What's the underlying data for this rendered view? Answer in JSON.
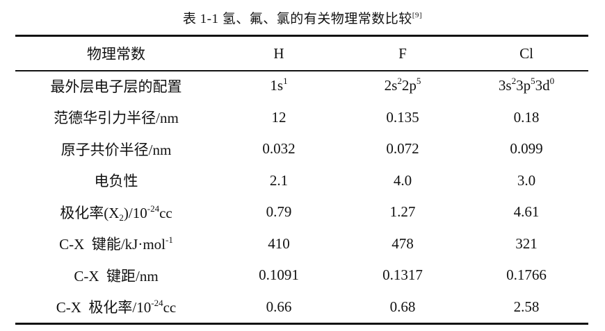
{
  "caption": {
    "prefix": "表 1-1   氢、氟、氯的有关物理常数比较",
    "ref": "[9]"
  },
  "table": {
    "headers": [
      "物理常数",
      "H",
      "F",
      "Cl"
    ],
    "rows": [
      {
        "label_html": "最外层电子层的配置",
        "values_html": [
          "1s<sup>1</sup>",
          "2s<sup>2</sup>2p<sup>5</sup>",
          "3s<sup>2</sup>3p<sup>5</sup>3d<sup>0</sup>"
        ]
      },
      {
        "label_html": "范德华引力半径/nm",
        "values_html": [
          "12",
          "0.135",
          "0.18"
        ]
      },
      {
        "label_html": "原子共价半径/nm",
        "values_html": [
          "0.032",
          "0.072",
          "0.099"
        ]
      },
      {
        "label_html": "电负性",
        "values_html": [
          "2.1",
          "4.0",
          "3.0"
        ]
      },
      {
        "label_html": "极化率(X<sub>2</sub>)/10<sup>-24</sup>cc",
        "values_html": [
          "0.79",
          "1.27",
          "4.61"
        ]
      },
      {
        "label_html": "C-X &nbsp;键能/kJ·mol<sup>-1</sup>",
        "values_html": [
          "410",
          "478",
          "321"
        ]
      },
      {
        "label_html": "C-X &nbsp;键距/nm",
        "values_html": [
          "0.1091",
          "0.1317",
          "0.1766"
        ]
      },
      {
        "label_html": "C-X &nbsp;极化率/10<sup>-24</sup>cc",
        "values_html": [
          "0.66",
          "0.68",
          "2.58"
        ]
      }
    ]
  }
}
